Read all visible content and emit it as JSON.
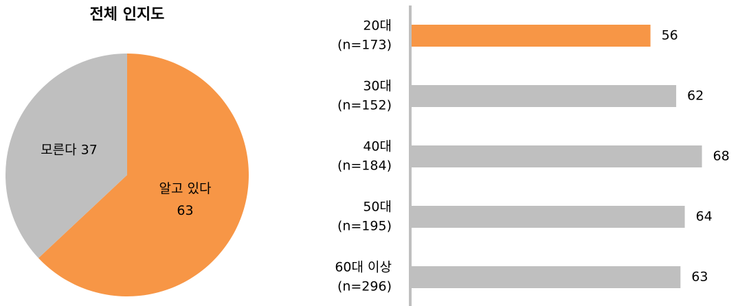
{
  "chart_data": [
    {
      "type": "pie",
      "title": "전체 인지도",
      "categories": [
        "알고 있다",
        "모른다"
      ],
      "values": [
        63,
        37
      ],
      "colors": [
        "#f79646",
        "#bfbfbf"
      ]
    },
    {
      "type": "hbar",
      "categories": [
        [
          "20대",
          "(n=173)"
        ],
        [
          "30대",
          "(n=152)"
        ],
        [
          "40대",
          "(n=184)"
        ],
        [
          "50대",
          "(n=195)"
        ],
        [
          "60대 이상",
          "(n=296)"
        ]
      ],
      "values": [
        56,
        62,
        68,
        64,
        63
      ],
      "colors": [
        "#f79646",
        "#bfbfbf",
        "#bfbfbf",
        "#bfbfbf",
        "#bfbfbf"
      ],
      "xlim": [
        0,
        70
      ]
    }
  ]
}
